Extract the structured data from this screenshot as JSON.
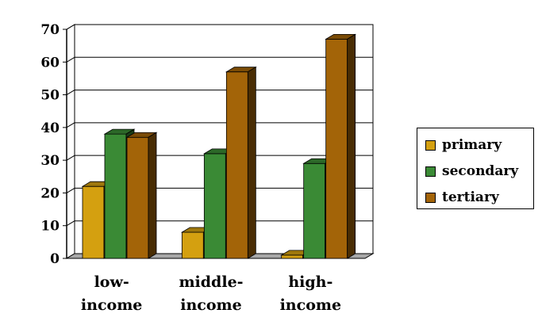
{
  "chart_data": {
    "type": "bar",
    "categories": [
      [
        "low-",
        "income"
      ],
      [
        "middle-",
        "income"
      ],
      [
        "high-",
        "income"
      ]
    ],
    "series": [
      {
        "name": "primary",
        "values": [
          22,
          8,
          1
        ],
        "color": "#d4a010"
      },
      {
        "name": "secondary",
        "values": [
          38,
          32,
          29
        ],
        "color": "#3a8a35"
      },
      {
        "name": "tertiary",
        "values": [
          37,
          57,
          67
        ],
        "color": "#a36408"
      }
    ],
    "yticks": [
      0,
      10,
      20,
      30,
      40,
      50,
      60,
      70
    ],
    "ylim": [
      0,
      70
    ],
    "grid": true,
    "legend_position": "right",
    "style": "3d"
  }
}
